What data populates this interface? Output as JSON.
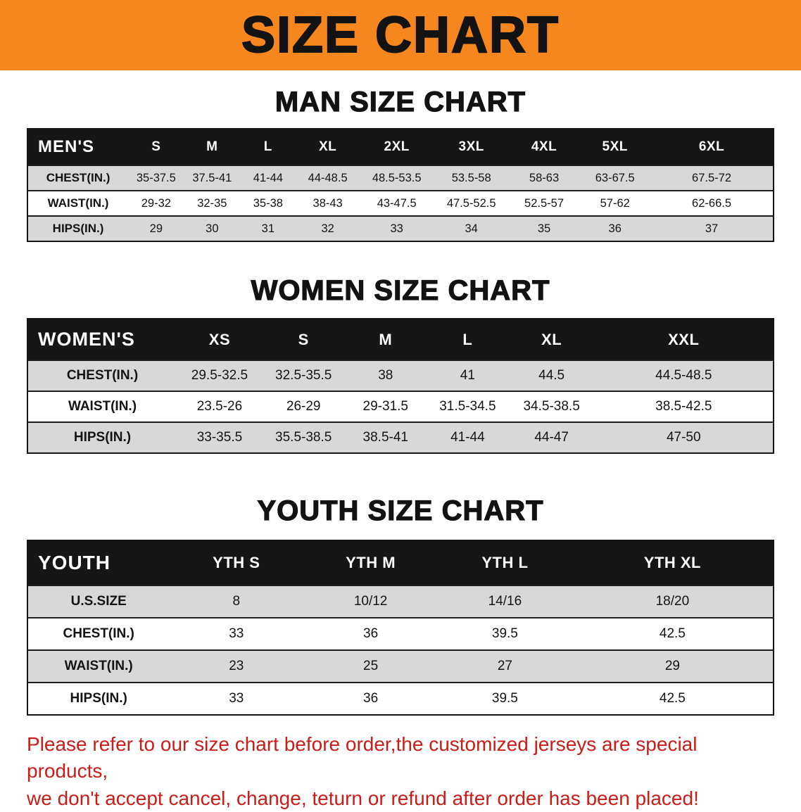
{
  "banner": {
    "title": "SIZE CHART"
  },
  "colors": {
    "banner_bg": "#f6871f",
    "table_header_bg": "#161616",
    "row_shade": "#d8d8d8",
    "disclaimer_red": "#cb1c18"
  },
  "sections": [
    {
      "id": "men",
      "heading": "MAN SIZE CHART",
      "table": {
        "header": [
          "MEN'S",
          "S",
          "M",
          "L",
          "XL",
          "2XL",
          "3XL",
          "4XL",
          "5XL",
          "6XL"
        ],
        "rows": [
          {
            "label": "CHEST(IN.)",
            "values": [
              "35-37.5",
              "37.5-41",
              "41-44",
              "44-48.5",
              "48.5-53.5",
              "53.5-58",
              "58-63",
              "63-67.5",
              "67.5-72"
            ]
          },
          {
            "label": "WAIST(IN.)",
            "values": [
              "29-32",
              "32-35",
              "35-38",
              "38-43",
              "43-47.5",
              "47.5-52.5",
              "52.5-57",
              "57-62",
              "62-66.5"
            ]
          },
          {
            "label": "HIPS(IN.)",
            "values": [
              "29",
              "30",
              "31",
              "32",
              "33",
              "34",
              "35",
              "36",
              "37"
            ]
          }
        ]
      }
    },
    {
      "id": "women",
      "heading": "WOMEN SIZE CHART",
      "table": {
        "header": [
          "WOMEN'S",
          "XS",
          "S",
          "M",
          "L",
          "XL",
          "XXL"
        ],
        "rows": [
          {
            "label": "CHEST(IN.)",
            "values": [
              "29.5-32.5",
              "32.5-35.5",
              "38",
              "41",
              "44.5",
              "44.5-48.5"
            ]
          },
          {
            "label": "WAIST(IN.)",
            "values": [
              "23.5-26",
              "26-29",
              "29-31.5",
              "31.5-34.5",
              "34.5-38.5",
              "38.5-42.5"
            ]
          },
          {
            "label": "HIPS(IN.)",
            "values": [
              "33-35.5",
              "35.5-38.5",
              "38.5-41",
              "41-44",
              "44-47",
              "47-50"
            ]
          }
        ]
      }
    },
    {
      "id": "youth",
      "heading": "YOUTH SIZE CHART",
      "table": {
        "header": [
          "YOUTH",
          "YTH S",
          "YTH M",
          "YTH L",
          "YTH XL"
        ],
        "rows": [
          {
            "label": "U.S.SIZE",
            "values": [
              "8",
              "10/12",
              "14/16",
              "18/20"
            ]
          },
          {
            "label": "CHEST(IN.)",
            "values": [
              "33",
              "36",
              "39.5",
              "42.5"
            ]
          },
          {
            "label": "WAIST(IN.)",
            "values": [
              "23",
              "25",
              "27",
              "29"
            ]
          },
          {
            "label": "HIPS(IN.)",
            "values": [
              "33",
              "36",
              "39.5",
              "42.5"
            ]
          }
        ]
      }
    }
  ],
  "disclaimer": {
    "line1": "Please refer to our size chart before order,the customized jerseys are special products,",
    "line2": "we don't accept cancel, change, teturn or refund after order has been placed!"
  }
}
